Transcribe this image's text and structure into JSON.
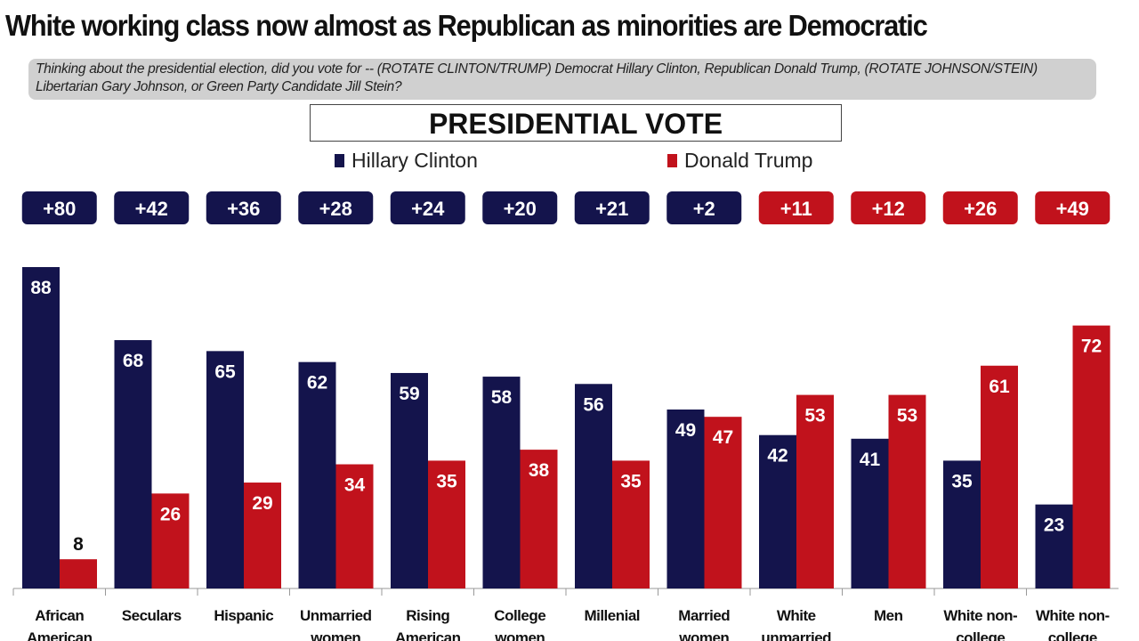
{
  "title": "White working class now almost as Republican as minorities are Democratic",
  "question": "Thinking about the presidential election, did you vote for -- (ROTATE CLINTON/TRUMP) Democrat Hillary Clinton, Republican Donald Trump, (ROTATE JOHNSON/STEIN) Libertarian Gary Johnson, or Green Party Candidate Jill Stein?",
  "colors": {
    "clinton": "#14144c",
    "trump": "#c1121c"
  },
  "chart_data": {
    "type": "bar",
    "title": "PRESIDENTIAL VOTE",
    "categories": [
      [
        "African",
        "American"
      ],
      [
        "Seculars"
      ],
      [
        "Hispanic"
      ],
      [
        "Unmarried",
        "women"
      ],
      [
        "Rising",
        "American"
      ],
      [
        "College",
        "women"
      ],
      [
        "Millenial"
      ],
      [
        "Married",
        "women"
      ],
      [
        "White",
        "unmarried"
      ],
      [
        "Men"
      ],
      [
        "White non-",
        "college"
      ],
      [
        "White non-",
        "college"
      ]
    ],
    "series": [
      {
        "name": "Hillary Clinton",
        "values": [
          88,
          68,
          65,
          62,
          59,
          58,
          56,
          49,
          42,
          41,
          35,
          23
        ]
      },
      {
        "name": "Donald Trump",
        "values": [
          8,
          26,
          29,
          34,
          35,
          38,
          35,
          47,
          53,
          53,
          61,
          72
        ]
      }
    ],
    "margins": [
      "+80",
      "+42",
      "+36",
      "+28",
      "+24",
      "+20",
      "+21",
      "+2",
      "+11",
      "+12",
      "+26",
      "+49"
    ],
    "margin_party": [
      "clinton",
      "clinton",
      "clinton",
      "clinton",
      "clinton",
      "clinton",
      "clinton",
      "clinton",
      "trump",
      "trump",
      "trump",
      "trump"
    ],
    "ylim": [
      0,
      88
    ],
    "grid": false,
    "legend": "top-center"
  }
}
